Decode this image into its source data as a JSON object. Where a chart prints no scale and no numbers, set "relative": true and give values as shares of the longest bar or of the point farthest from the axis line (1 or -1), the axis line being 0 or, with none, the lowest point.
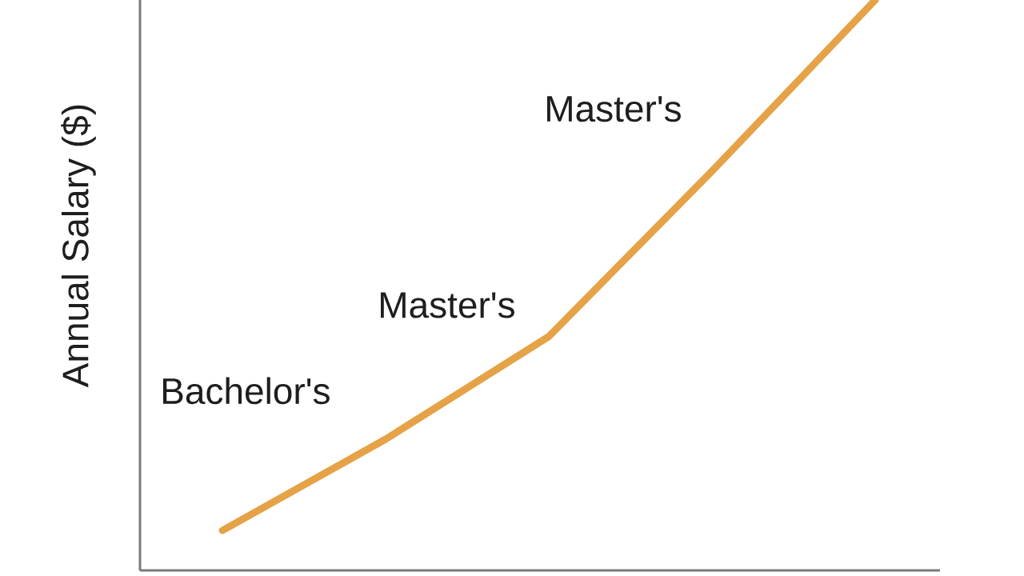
{
  "chart_data": {
    "type": "line",
    "ylabel": "Annual Salary ($)",
    "categories": [
      null,
      null,
      null,
      null,
      null
    ],
    "values": [
      0.07,
      0.23,
      0.41,
      0.7,
      1
    ],
    "color": "#e6a247",
    "relative": true,
    "annotations": [
      "Bachelor's",
      "Master's",
      "Master's"
    ]
  }
}
